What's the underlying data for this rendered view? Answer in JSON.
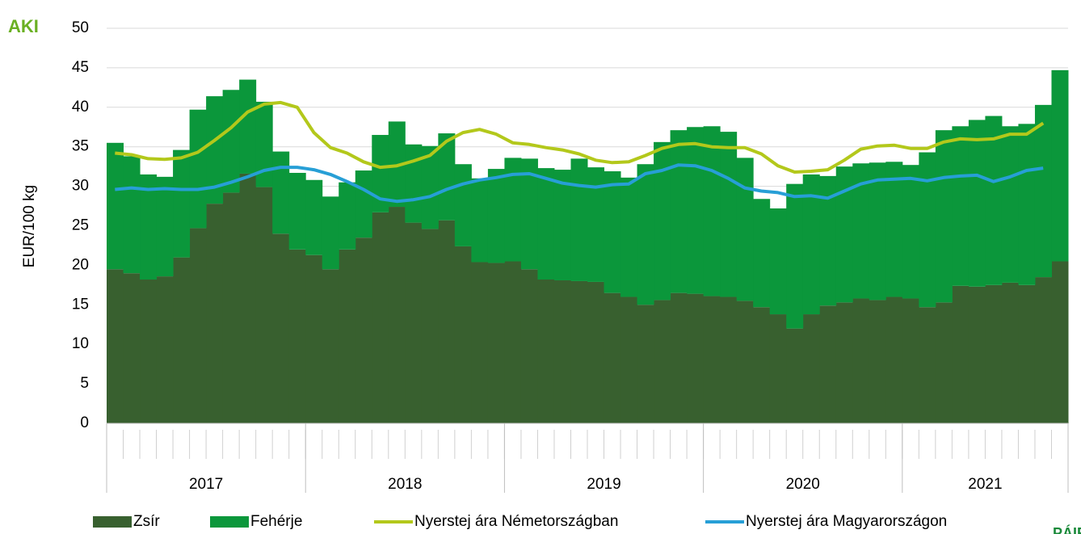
{
  "chart_data": {
    "type": "stacked-bar-line",
    "logo": "AKI",
    "logo2": "PÁIR",
    "ylabel": "EUR/100 kg",
    "ylim": [
      0,
      50
    ],
    "yticks": [
      0,
      5,
      10,
      15,
      20,
      25,
      30,
      35,
      40,
      45,
      50
    ],
    "grid": true,
    "legend": "bottom",
    "groups": [
      {
        "label": "2017",
        "span": 12
      },
      {
        "label": "2018",
        "span": 12
      },
      {
        "label": "2019",
        "span": 12
      },
      {
        "label": "2020",
        "span": 12
      },
      {
        "label": "2021",
        "span": 10
      }
    ],
    "series": [
      {
        "name": "Zsír",
        "kind": "bar",
        "color": "#38602f",
        "values": [
          19.5,
          19,
          18.2,
          18.6,
          21,
          24.7,
          27.8,
          29.2,
          31.6,
          29.9,
          24,
          22,
          21.3,
          19.5,
          22,
          23.5,
          26.7,
          27.4,
          25.4,
          24.6,
          25.7,
          22.4,
          20.4,
          20.3,
          20.5,
          19.5,
          18.2,
          18.1,
          18,
          17.9,
          16.5,
          16,
          15,
          15.6,
          16.5,
          16.4,
          16.1,
          16,
          15.5,
          14.7,
          13.8,
          12,
          13.8,
          14.9,
          15.3,
          15.8,
          15.6,
          16,
          15.8,
          14.7,
          15.3,
          17.4,
          17.3,
          17.5,
          17.8,
          17.5,
          18.5,
          20.5
        ]
      },
      {
        "name": "Fehérje",
        "kind": "bar",
        "color": "#0b973b",
        "values": [
          16,
          14.8,
          13.3,
          12.6,
          13.6,
          15,
          13.6,
          13,
          11.9,
          10.8,
          10.4,
          9.7,
          9.5,
          9.2,
          8.5,
          8.5,
          9.8,
          10.8,
          9.9,
          10.5,
          11,
          10.4,
          10.6,
          11.9,
          13.1,
          14,
          14.1,
          14,
          15.5,
          14.5,
          15.4,
          15.1,
          17.8,
          20,
          20.6,
          21.1,
          21.5,
          20.9,
          18.1,
          13.7,
          13.4,
          18.3,
          17.7,
          16.4,
          17.2,
          17.1,
          17.4,
          17.1,
          16.9,
          19.6,
          21.8,
          20.2,
          21.1,
          21.4,
          19.8,
          20.4,
          21.8,
          24.2
        ]
      },
      {
        "name": "Nyerstej ára Németországban",
        "kind": "line",
        "color": "#b3c81b",
        "values": [
          34.2,
          34,
          33.5,
          33.4,
          33.6,
          34.3,
          35.8,
          37.4,
          39.4,
          40.4,
          40.6,
          40,
          36.8,
          34.9,
          34.2,
          33.1,
          32.4,
          32.6,
          33.2,
          33.9,
          35.7,
          36.8,
          37.2,
          36.6,
          35.5,
          35.3,
          34.9,
          34.6,
          34.1,
          33.3,
          33,
          33.1,
          33.9,
          34.8,
          35.3,
          35.4,
          35,
          34.9,
          34.9,
          34.1,
          32.6,
          31.8,
          31.9,
          32.1,
          33.3,
          34.7,
          35.1,
          35.2,
          34.8,
          34.8,
          35.6,
          36,
          35.9,
          36,
          36.6,
          36.6,
          38,
          null
        ]
      },
      {
        "name": "Nyerstej ára Magyarországon",
        "kind": "line",
        "color": "#279fd6",
        "values": [
          29.6,
          29.8,
          29.6,
          29.7,
          29.6,
          29.6,
          29.9,
          30.5,
          31.2,
          32,
          32.4,
          32.4,
          32.1,
          31.5,
          30.6,
          29.6,
          28.4,
          28.1,
          28.3,
          28.7,
          29.6,
          30.3,
          30.8,
          31.1,
          31.5,
          31.6,
          31,
          30.4,
          30.1,
          29.9,
          30.2,
          30.3,
          31.6,
          32,
          32.7,
          32.6,
          32,
          31,
          29.8,
          29.4,
          29.2,
          28.7,
          28.8,
          28.5,
          29.4,
          30.3,
          30.8,
          30.9,
          31,
          30.7,
          31.1,
          31.3,
          31.4,
          30.6,
          31.2,
          32,
          32.3,
          null
        ]
      }
    ]
  }
}
